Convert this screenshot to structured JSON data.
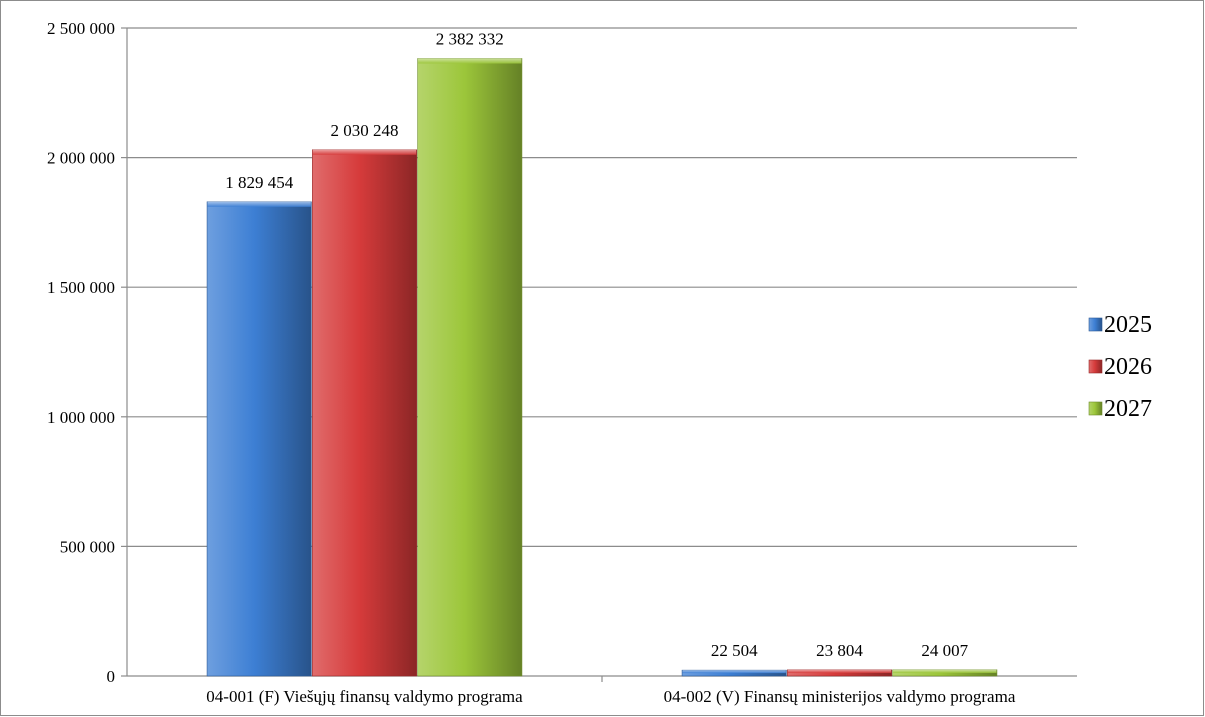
{
  "chart_data": {
    "type": "bar",
    "title": "",
    "xlabel": "",
    "ylabel": "",
    "categories": [
      "04-001 (F) Viešųjų finansų valdymo programa",
      "04-002 (V) Finansų ministerijos valdymo programa"
    ],
    "series": [
      {
        "name": "2025",
        "values": [
          1829454,
          22504
        ],
        "labels": [
          "1 829 454",
          "22 504"
        ],
        "color": "#3d7fd4"
      },
      {
        "name": "2026",
        "values": [
          2030248,
          23804
        ],
        "labels": [
          "2 030 248",
          "23 804"
        ],
        "color": "#d63b3b"
      },
      {
        "name": "2027",
        "values": [
          2382332,
          24007
        ],
        "labels": [
          "2 382 332",
          "24 007"
        ],
        "color": "#9cc63a"
      }
    ],
    "ylim": [
      0,
      2500000
    ],
    "yticks": [
      {
        "value": 0,
        "label": "0"
      },
      {
        "value": 500000,
        "label": "500 000"
      },
      {
        "value": 1000000,
        "label": "1 000 000"
      },
      {
        "value": 1500000,
        "label": "1 500 000"
      },
      {
        "value": 2000000,
        "label": "2 000 000"
      },
      {
        "value": 2500000,
        "label": "2 500 000"
      }
    ],
    "grid": true,
    "legend_position": "right"
  }
}
